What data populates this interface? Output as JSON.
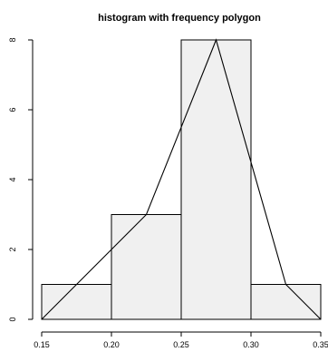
{
  "chart_data": {
    "type": "bar",
    "title": "histogram with frequency polygon",
    "xlabel": "",
    "ylabel": "",
    "xlim": [
      0.15,
      0.35
    ],
    "ylim": [
      0,
      8
    ],
    "bins": [
      {
        "from": 0.15,
        "to": 0.2,
        "count": 1
      },
      {
        "from": 0.2,
        "to": 0.25,
        "count": 3
      },
      {
        "from": 0.25,
        "to": 0.3,
        "count": 8
      },
      {
        "from": 0.3,
        "to": 0.35,
        "count": 1
      }
    ],
    "frequency_polygon": {
      "x": [
        0.15,
        0.225,
        0.275,
        0.325,
        0.35
      ],
      "y": [
        0,
        3,
        8,
        1,
        0
      ]
    },
    "x_ticks": [
      0.15,
      0.2,
      0.25,
      0.3,
      0.35
    ],
    "x_tick_labels": [
      "0.15",
      "0.20",
      "0.25",
      "0.30",
      "0.35"
    ],
    "y_ticks": [
      0,
      2,
      4,
      6,
      8
    ],
    "y_tick_labels": [
      "0",
      "2",
      "4",
      "6",
      "8"
    ],
    "bar_fill": "#f0f0f0",
    "line_color": "#000000",
    "grid": false,
    "legend": "none"
  }
}
